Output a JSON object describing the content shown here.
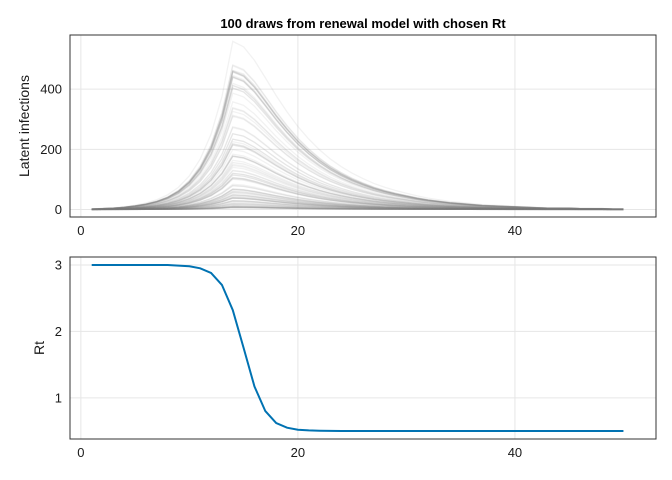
{
  "chart_data": [
    {
      "type": "line",
      "title": "100 draws from renewal model with chosen Rt",
      "xlabel": "",
      "ylabel": "Latent infections",
      "xlim": [
        -1,
        53
      ],
      "ylim": [
        -25,
        580
      ],
      "xticks": [
        0,
        20,
        40
      ],
      "yticks": [
        0,
        200,
        400
      ],
      "grid": true,
      "draw_count": 100,
      "line_color": "#7f7f7f",
      "series_peak_day": 14,
      "x": [
        1,
        2,
        3,
        4,
        5,
        6,
        7,
        8,
        9,
        10,
        11,
        12,
        13,
        14,
        15,
        16,
        17,
        18,
        19,
        20,
        21,
        22,
        23,
        24,
        25,
        26,
        27,
        28,
        29,
        30,
        31,
        32,
        33,
        34,
        35,
        36,
        37,
        38,
        39,
        40,
        41,
        42,
        43,
        44,
        45,
        46,
        47,
        48,
        49,
        50
      ],
      "series": [
        {
          "values": [
            1,
            2,
            3,
            5,
            8,
            12,
            18,
            27,
            41,
            62,
            93,
            139,
            208,
            310,
            300,
            275,
            243,
            210,
            180,
            153,
            130,
            110,
            93,
            79,
            67,
            57,
            48,
            41,
            35,
            30,
            25,
            21,
            18,
            15,
            13,
            11,
            9,
            8,
            7,
            6,
            5,
            4,
            3,
            3,
            3,
            2,
            2,
            2,
            1,
            1
          ]
        },
        {
          "values": [
            2,
            3,
            4,
            7,
            11,
            17,
            26,
            40,
            61,
            92,
            138,
            208,
            311,
            462,
            450,
            413,
            364,
            315,
            270,
            230,
            195,
            166,
            141,
            119,
            101,
            86,
            73,
            62,
            53,
            45,
            38,
            32,
            27,
            23,
            20,
            17,
            14,
            12,
            10,
            9,
            8,
            6,
            5,
            5,
            4,
            3,
            3,
            2,
            2,
            2
          ]
        },
        {
          "values": [
            1,
            1,
            2,
            2,
            3,
            5,
            7,
            10,
            16,
            24,
            36,
            54,
            80,
            120,
            116,
            107,
            94,
            81,
            70,
            59,
            50,
            43,
            36,
            31,
            26,
            22,
            19,
            16,
            14,
            11,
            10,
            8,
            7,
            6,
            5,
            4,
            4,
            3,
            3,
            2,
            2,
            2,
            1,
            1,
            1,
            1,
            1,
            1,
            0,
            0
          ]
        },
        {
          "values": [
            0,
            1,
            1,
            2,
            2,
            3,
            4,
            6,
            9,
            14,
            20,
            30,
            45,
            68,
            66,
            60,
            53,
            46,
            40,
            34,
            29,
            24,
            21,
            17,
            15,
            13,
            11,
            9,
            8,
            6,
            5,
            5,
            4,
            3,
            3,
            2,
            2,
            2,
            2,
            1,
            1,
            1,
            1,
            1,
            1,
            0,
            0,
            0,
            0,
            0
          ]
        },
        {
          "values": [
            1,
            1,
            2,
            3,
            4,
            6,
            9,
            14,
            21,
            31,
            47,
            70,
            105,
            156,
            151,
            139,
            122,
            106,
            91,
            77,
            66,
            56,
            47,
            40,
            34,
            29,
            25,
            21,
            18,
            15,
            13,
            11,
            9,
            8,
            7,
            6,
            5,
            4,
            3,
            3,
            2,
            2,
            2,
            2,
            1,
            1,
            1,
            1,
            1,
            1
          ]
        }
      ]
    },
    {
      "type": "line",
      "title": "",
      "xlabel": "",
      "ylabel": "Rt",
      "xlim": [
        -1,
        53
      ],
      "ylim": [
        0.38,
        3.12
      ],
      "xticks": [
        0,
        20,
        40
      ],
      "yticks": [
        1,
        2,
        3
      ],
      "grid": true,
      "line_color": "#0072b2",
      "x": [
        1,
        2,
        3,
        4,
        5,
        6,
        7,
        8,
        9,
        10,
        11,
        12,
        13,
        14,
        15,
        16,
        17,
        18,
        19,
        20,
        21,
        22,
        23,
        24,
        25,
        26,
        27,
        28,
        29,
        30,
        31,
        32,
        33,
        34,
        35,
        36,
        37,
        38,
        39,
        40,
        41,
        42,
        43,
        44,
        45,
        46,
        47,
        48,
        49,
        50
      ],
      "series": [
        {
          "values": [
            3.0,
            3.0,
            3.0,
            3.0,
            3.0,
            3.0,
            3.0,
            3.0,
            2.99,
            2.98,
            2.95,
            2.88,
            2.7,
            2.32,
            1.75,
            1.17,
            0.8,
            0.62,
            0.55,
            0.52,
            0.51,
            0.505,
            0.502,
            0.5,
            0.5,
            0.5,
            0.5,
            0.5,
            0.5,
            0.5,
            0.5,
            0.5,
            0.5,
            0.5,
            0.5,
            0.5,
            0.5,
            0.5,
            0.5,
            0.5,
            0.5,
            0.5,
            0.5,
            0.5,
            0.5,
            0.5,
            0.5,
            0.5,
            0.5,
            0.5
          ]
        }
      ]
    }
  ]
}
